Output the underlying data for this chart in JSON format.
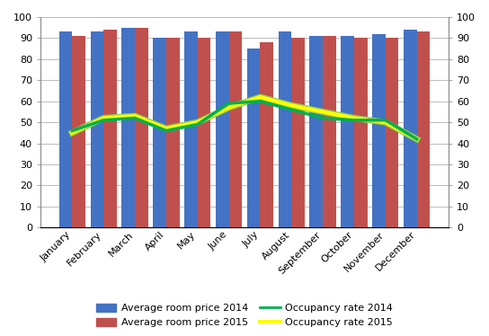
{
  "months": [
    "January",
    "February",
    "March",
    "April",
    "May",
    "June",
    "July",
    "August",
    "September",
    "October",
    "November",
    "December"
  ],
  "avg_price_2014": [
    93,
    93,
    95,
    90,
    93,
    93,
    85,
    93,
    91,
    91,
    92,
    94
  ],
  "avg_price_2015": [
    91,
    94,
    95,
    90,
    90,
    93,
    88,
    90,
    91,
    90,
    90,
    93
  ],
  "occupancy_2014": [
    46,
    51,
    52,
    46,
    49,
    59,
    60,
    56,
    52,
    51,
    51,
    42
  ],
  "occupancy_2015": [
    45,
    52,
    53,
    47,
    50,
    57,
    62,
    58,
    55,
    52,
    50,
    42
  ],
  "bar_color_2014": "#4472C4",
  "bar_color_2015": "#C0504D",
  "line_color_2014": "#00B050",
  "line_color_2015": "#FFFF00",
  "line_color_2015_outline": "#92D050",
  "ylim": [
    0,
    100
  ],
  "yticks": [
    0,
    10,
    20,
    30,
    40,
    50,
    60,
    70,
    80,
    90,
    100
  ],
  "legend_labels": [
    "Average room price 2014",
    "Average room price 2015",
    "Occupancy rate 2014",
    "Occupancy rate 2015"
  ],
  "bar_width": 0.42
}
